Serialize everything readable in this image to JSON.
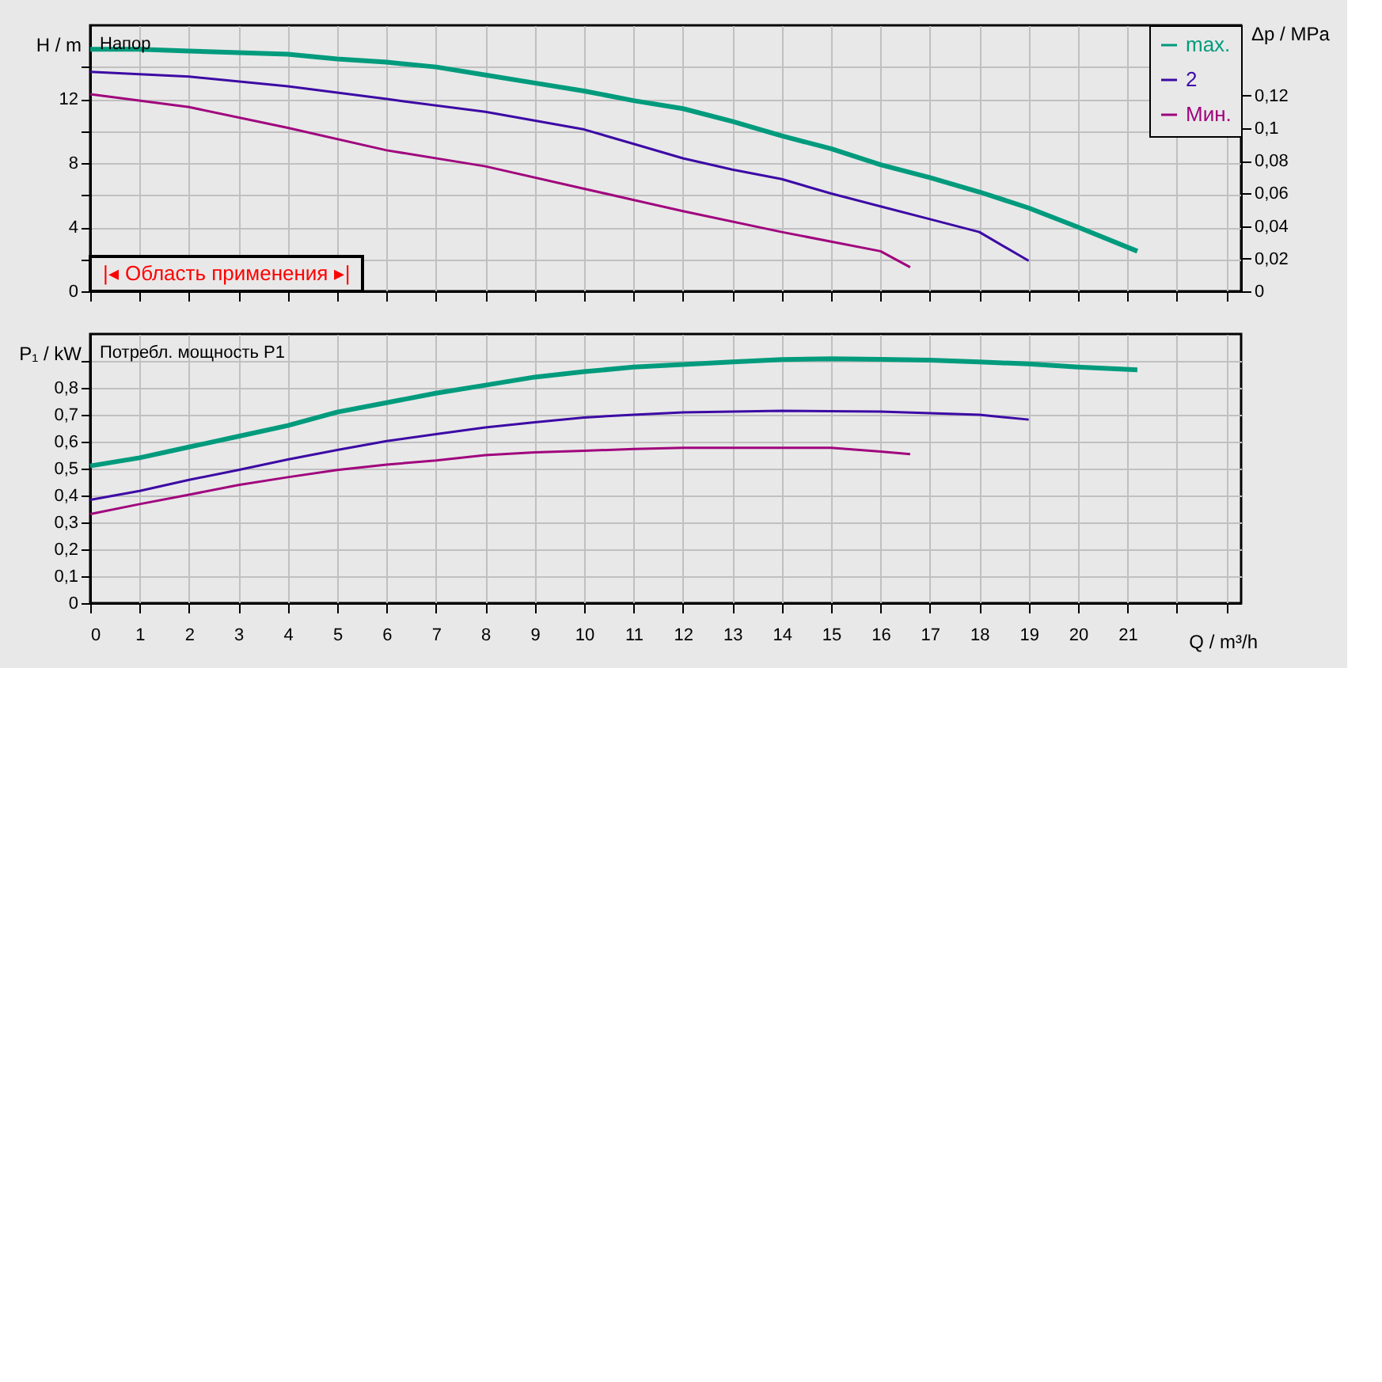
{
  "chart_data": [
    {
      "type": "line",
      "ylabel": "H / m",
      "y2label": "Δp / MPa",
      "annotations": [
        "Напор",
        "|◂ Область применения ▸|"
      ],
      "series": [
        {
          "name": "max.",
          "color": "#009b7d",
          "x": [
            0,
            1,
            2,
            3,
            4,
            5,
            6,
            7,
            8,
            9,
            10,
            11,
            12,
            13,
            14,
            15,
            16,
            17,
            18,
            19,
            20,
            21.2
          ],
          "values": [
            15.1,
            15.1,
            15.0,
            14.9,
            14.8,
            14.5,
            14.3,
            14.0,
            13.5,
            13.0,
            12.5,
            11.9,
            11.4,
            10.6,
            9.7,
            8.9,
            7.9,
            7.1,
            6.2,
            5.2,
            4.0,
            2.5
          ]
        },
        {
          "name": "2",
          "color": "#3c0aa5",
          "x": [
            0,
            2,
            4,
            6,
            8,
            10,
            11,
            12,
            13,
            14,
            15,
            16,
            17,
            18,
            19
          ],
          "values": [
            13.7,
            13.4,
            12.8,
            12.0,
            11.2,
            10.1,
            9.2,
            8.3,
            7.6,
            7.0,
            6.1,
            5.3,
            4.5,
            3.7,
            1.9
          ]
        },
        {
          "name": "Мин.",
          "color": "#a0057d",
          "x": [
            0,
            2,
            4,
            6,
            8,
            10,
            12,
            14,
            16,
            16.6
          ],
          "values": [
            12.3,
            11.5,
            10.2,
            8.8,
            7.8,
            6.4,
            5.0,
            3.7,
            2.5,
            1.5
          ]
        }
      ],
      "xlim": [
        0,
        23.3
      ],
      "xticks": [
        0,
        1,
        2,
        3,
        4,
        5,
        6,
        7,
        8,
        9,
        10,
        11,
        12,
        13,
        14,
        15,
        16,
        17,
        18,
        19,
        20,
        21,
        22,
        23
      ],
      "ylim": [
        0,
        16.6
      ],
      "yticks": [
        0,
        {
          "value": 2,
          "label": null
        },
        4,
        {
          "value": 6,
          "label": null
        },
        8,
        {
          "value": 10,
          "label": null
        },
        12,
        {
          "value": 14,
          "label": null
        }
      ],
      "y2lim": [
        0,
        0.163
      ],
      "y2ticks": [
        0,
        {
          "value": 0.02,
          "label": "0,02"
        },
        {
          "value": 0.04,
          "label": "0,04"
        },
        {
          "value": 0.06,
          "label": "0,06"
        },
        {
          "value": 0.08,
          "label": "0,08"
        },
        {
          "value": 0.1,
          "label": "0,1"
        },
        {
          "value": 0.12,
          "label": "0,12"
        }
      ],
      "grid": true,
      "legend": "top right",
      "tick_labels": "y"
    },
    {
      "type": "line",
      "xlabel": "Q / m³/h",
      "ylabel": "P₁ / kW",
      "annotations": [
        "Потребл. мощность P1"
      ],
      "series": [
        {
          "color": "#009b7d",
          "x": [
            0,
            1,
            2,
            3,
            4,
            5,
            6,
            7,
            8,
            9,
            10,
            11,
            12,
            13,
            14,
            15,
            16,
            17,
            18,
            19,
            20,
            21.2
          ],
          "values": [
            0.51,
            0.54,
            0.58,
            0.62,
            0.66,
            0.71,
            0.745,
            0.78,
            0.81,
            0.84,
            0.86,
            0.877,
            0.887,
            0.896,
            0.905,
            0.908,
            0.906,
            0.903,
            0.896,
            0.889,
            0.877,
            0.867
          ]
        },
        {
          "color": "#3c0aa5",
          "x": [
            0,
            1,
            2,
            3,
            4,
            5,
            6,
            7,
            8,
            9,
            10,
            11,
            12,
            14,
            16,
            18,
            19
          ],
          "values": [
            0.384,
            0.417,
            0.458,
            0.495,
            0.534,
            0.569,
            0.602,
            0.628,
            0.653,
            0.672,
            0.69,
            0.7,
            0.709,
            0.715,
            0.712,
            0.7,
            0.682
          ]
        },
        {
          "color": "#a0057d",
          "x": [
            0,
            1,
            2,
            3,
            4,
            5,
            6,
            7,
            8,
            9,
            10,
            11,
            12,
            15,
            16,
            16.6
          ],
          "values": [
            0.331,
            0.368,
            0.403,
            0.439,
            0.468,
            0.495,
            0.515,
            0.53,
            0.55,
            0.56,
            0.566,
            0.573,
            0.577,
            0.577,
            0.563,
            0.554
          ]
        }
      ],
      "xlim": [
        0,
        23.3
      ],
      "xticks": [
        0,
        1,
        2,
        3,
        4,
        5,
        6,
        7,
        8,
        9,
        10,
        11,
        12,
        13,
        14,
        15,
        16,
        17,
        18,
        19,
        20,
        21,
        {
          "value": 22,
          "label": null
        },
        {
          "value": 23,
          "label": null
        }
      ],
      "ylim": [
        0,
        1.0
      ],
      "yticks": [
        0,
        {
          "value": 0.1,
          "label": "0,1"
        },
        {
          "value": 0.2,
          "label": "0,2"
        },
        {
          "value": 0.3,
          "label": "0,3"
        },
        {
          "value": 0.4,
          "label": "0,4"
        },
        {
          "value": 0.5,
          "label": "0,5"
        },
        {
          "value": 0.6,
          "label": "0,6"
        },
        {
          "value": 0.7,
          "label": "0,7"
        },
        {
          "value": 0.8,
          "label": "0,8"
        },
        {
          "value": 0.9,
          "label": null
        }
      ],
      "grid": true,
      "legend": false
    }
  ]
}
